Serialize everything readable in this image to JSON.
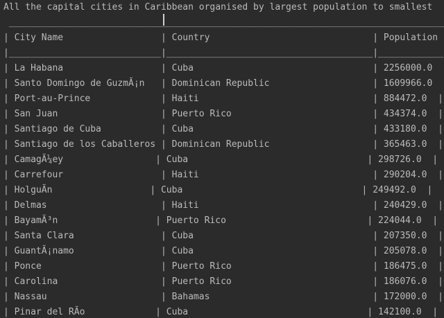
{
  "console": {
    "colors": {
      "background": "#2b2b2b",
      "text": "#bbbbbb"
    },
    "title": "All the capital cities in Caribbean organised by largest population to smallest",
    "top_border": " ___________________________________________________________________________________",
    "header_row": "| City Name                  | Country                              | Population |",
    "header_divider": "|____________________________|______________________________________|____________|",
    "rows": [
      "| La Habana                  | Cuba                                 | 2256000.0  |",
      "| Santo Domingo de GuzmÃ¡n   | Dominican Republic                   | 1609966.0  |",
      "| Port-au-Prince             | Haiti                                | 884472.0  |",
      "| San Juan                   | Puerto Rico                          | 434374.0  |",
      "| Santiago de Cuba           | Cuba                                 | 433180.0  |",
      "| Santiago de los Caballeros | Dominican Republic                   | 365463.0  |",
      "| CamagÃ¼ey                 | Cuba                                 | 298726.0  |",
      "| Carrefour                  | Haiti                                | 290204.0  |",
      "| HolguÃ­n                  | Cuba                                 | 249492.0  |",
      "| Delmas                     | Haiti                                | 240429.0  |",
      "| BayamÃ³n                  | Puerto Rico                          | 224044.0  |",
      "| Santa Clara                | Cuba                                 | 207350.0  |",
      "| GuantÃ¡namo                | Cuba                                 | 205078.0  |",
      "| Ponce                      | Puerto Rico                          | 186475.0  |",
      "| Carolina                   | Puerto Rico                          | 186076.0  |",
      "| Nassau                     | Bahamas                              | 172000.0  |",
      "| Pinar del RÃ­o             | Cuba                                 | 142100.0  |"
    ]
  }
}
